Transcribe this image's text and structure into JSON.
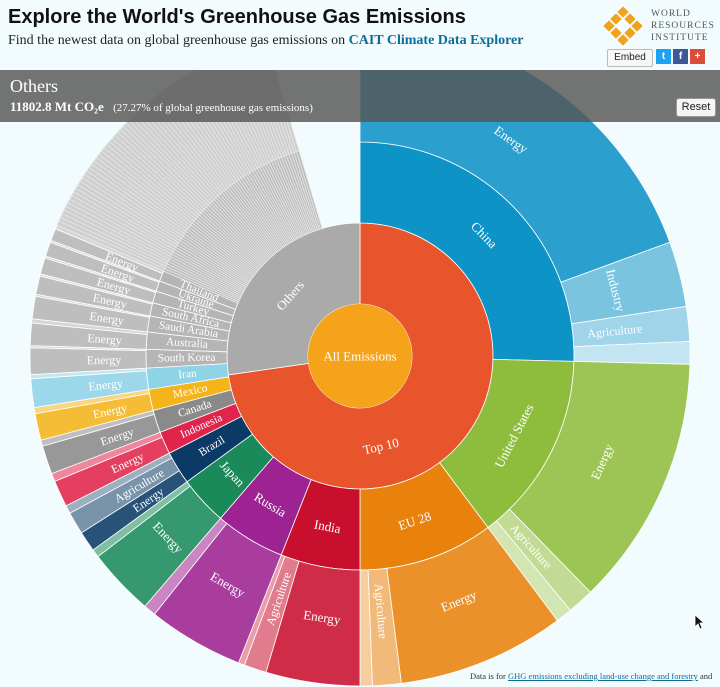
{
  "header": {
    "title": "Explore the World's Greenhouse Gas Emissions",
    "subtitle_prefix": "Find the newest data on global greenhouse gas emissions on",
    "subtitle_link": "CAIT Climate Data Explorer",
    "logo_lines": [
      "WORLD",
      "RESOURCES",
      "INSTITUTE"
    ],
    "embed_label": "Embed",
    "share": [
      {
        "icon": "twitter-icon",
        "glyph": "t",
        "color": "#1da1f2"
      },
      {
        "icon": "facebook-icon",
        "glyph": "f",
        "color": "#3b5998"
      },
      {
        "icon": "google-plus-icon",
        "glyph": "+",
        "color": "#dd4b39"
      }
    ]
  },
  "info": {
    "name": "Others",
    "value": "11802.8 Mt CO₂e",
    "pct": "(27.27% of global greenhouse gas emissions)",
    "reset_label": "Reset"
  },
  "footnote": {
    "prefix": "Data is for",
    "link": "GHG emissions excluding land-use change and forestry",
    "suffix": "and"
  },
  "chart_data": {
    "type": "sunburst",
    "center_label": "All Emissions",
    "colors": {
      "center": "#f5a31a",
      "top10": "#e8552d",
      "others": "#aaaaaa"
    },
    "groups": [
      {
        "name": "Top 10",
        "share": 72.73
      },
      {
        "name": "Others",
        "share": 27.27
      }
    ],
    "countries": [
      {
        "name": "China",
        "share": 25.4,
        "color": "#0e93c7",
        "sectors": [
          {
            "name": "Energy",
            "share": 19.4
          },
          {
            "name": "Industry",
            "share": 3.2
          },
          {
            "name": "Agriculture",
            "share": 1.7
          },
          {
            "name": "",
            "share": 1.1
          }
        ]
      },
      {
        "name": "United States",
        "share": 14.4,
        "color": "#8ebd3e",
        "sectors": [
          {
            "name": "Energy",
            "share": 12.3
          },
          {
            "name": "Agriculture",
            "share": 1.3
          },
          {
            "name": "",
            "share": 0.8
          }
        ]
      },
      {
        "name": "EU 28",
        "share": 10.2,
        "color": "#e8820c",
        "sectors": [
          {
            "name": "Energy",
            "share": 8.2
          },
          {
            "name": "Agriculture",
            "share": 1.4
          },
          {
            "name": "",
            "share": 0.6
          }
        ]
      },
      {
        "name": "India",
        "share": 6.0,
        "color": "#c8102e",
        "sectors": [
          {
            "name": "Energy",
            "share": 4.6
          },
          {
            "name": "Agriculture",
            "share": 1.1
          },
          {
            "name": "",
            "share": 0.3
          }
        ]
      },
      {
        "name": "Russia",
        "share": 5.3,
        "color": "#9c2391",
        "sectors": [
          {
            "name": "Energy",
            "share": 4.7
          },
          {
            "name": "",
            "share": 0.6
          }
        ]
      },
      {
        "name": "Japan",
        "share": 3.7,
        "color": "#1a8a5a",
        "sectors": [
          {
            "name": "Energy",
            "share": 3.3
          },
          {
            "name": "",
            "share": 0.4
          }
        ]
      },
      {
        "name": "Brazil",
        "share": 2.5,
        "color": "#0b3a66",
        "sectors": [
          {
            "name": "Energy",
            "share": 1.0
          },
          {
            "name": "Agriculture",
            "share": 1.1
          },
          {
            "name": "",
            "share": 0.4
          }
        ]
      },
      {
        "name": "Indonesia",
        "share": 1.7,
        "color": "#e0244c",
        "sectors": [
          {
            "name": "Energy",
            "share": 1.3
          },
          {
            "name": "",
            "share": 0.4
          }
        ]
      },
      {
        "name": "Canada",
        "share": 1.7,
        "color": "#8a8a8a",
        "sectors": [
          {
            "name": "Energy",
            "share": 1.4
          },
          {
            "name": "",
            "share": 0.3
          }
        ]
      },
      {
        "name": "Mexico",
        "share": 1.6,
        "color": "#f4b41a",
        "sectors": [
          {
            "name": "Energy",
            "share": 1.3
          },
          {
            "name": "",
            "share": 0.3
          }
        ]
      },
      {
        "name": "Iran",
        "share": 1.6,
        "color": "#8fd3e6",
        "sectors": [
          {
            "name": "Energy",
            "share": 1.4
          },
          {
            "name": "",
            "share": 0.2
          }
        ]
      },
      {
        "name": "South Korea",
        "share": 1.4,
        "color": "#b5b5b5",
        "sectors": [
          {
            "name": "Energy",
            "share": 1.3
          },
          {
            "name": "",
            "share": 0.1
          }
        ]
      },
      {
        "name": "Australia",
        "share": 1.3,
        "color": "#b5b5b5",
        "sectors": [
          {
            "name": "Energy",
            "share": 1.1
          },
          {
            "name": "",
            "share": 0.2
          }
        ]
      },
      {
        "name": "Saudi Arabia",
        "share": 1.2,
        "color": "#b5b5b5",
        "sectors": [
          {
            "name": "Energy",
            "share": 1.1
          },
          {
            "name": "",
            "share": 0.1
          }
        ]
      },
      {
        "name": "South Africa",
        "share": 1.0,
        "color": "#b5b5b5",
        "sectors": [
          {
            "name": "Energy",
            "share": 0.9
          },
          {
            "name": "",
            "share": 0.1
          }
        ]
      },
      {
        "name": "Turkey",
        "share": 0.9,
        "color": "#b5b5b5",
        "sectors": [
          {
            "name": "Energy",
            "share": 0.8
          },
          {
            "name": "",
            "share": 0.1
          }
        ]
      },
      {
        "name": "Ukraine",
        "share": 0.8,
        "color": "#b5b5b5",
        "sectors": [
          {
            "name": "Energy",
            "share": 0.7
          },
          {
            "name": "",
            "share": 0.1
          }
        ]
      },
      {
        "name": "Thailand",
        "share": 0.8,
        "color": "#b5b5b5",
        "sectors": [
          {
            "name": "Energy",
            "share": 0.6
          },
          {
            "name": "",
            "share": 0.2
          }
        ]
      },
      {
        "name": "",
        "share": 13.9,
        "color": "#c4c4c4",
        "many_small": true,
        "sectors": []
      }
    ]
  }
}
